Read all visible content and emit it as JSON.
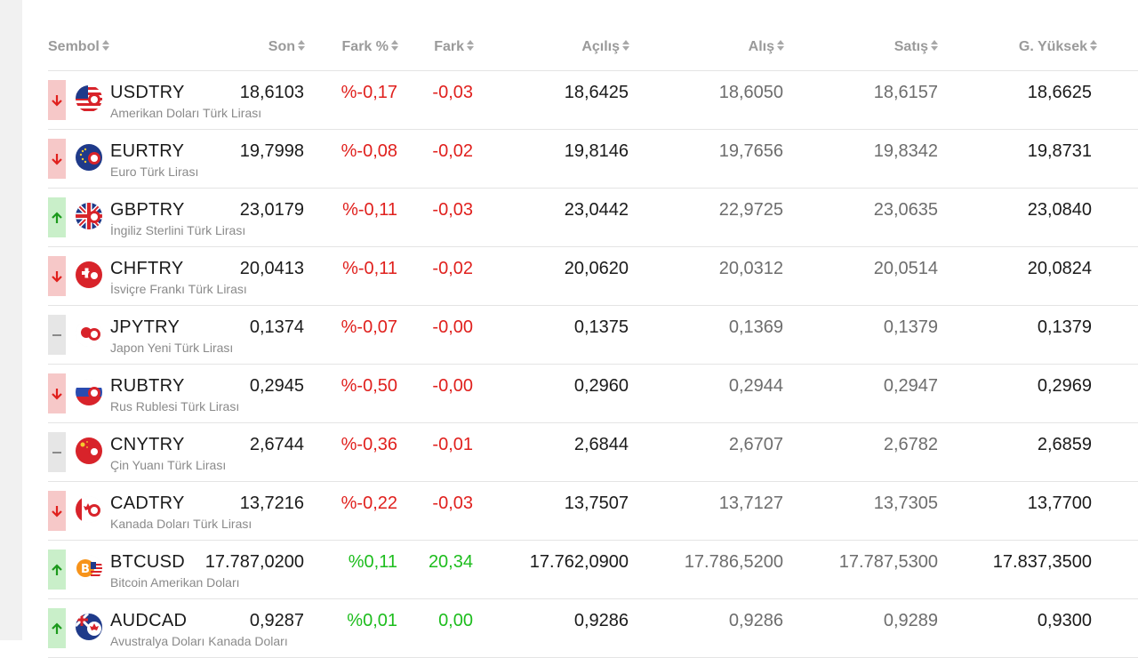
{
  "columns": {
    "symbol": "Sembol",
    "last": "Son",
    "change_pct": "Fark %",
    "change": "Fark",
    "open": "Açılış",
    "bid": "Alış",
    "ask": "Satış",
    "high": "G. Yüksek"
  },
  "colors": {
    "negative": "#e0201d",
    "positive": "#1dbd1d"
  },
  "rows": [
    {
      "symbol": "USDTRY",
      "desc": "Amerikan Doları Türk Lirası",
      "direction": "down",
      "flag": "us-flag-icon",
      "last": "18,6103",
      "pct": "%-0,17",
      "chg": "-0,03",
      "trend": "neg",
      "open": "18,6425",
      "bid": "18,6050",
      "ask": "18,6157",
      "high": "18,6625"
    },
    {
      "symbol": "EURTRY",
      "desc": "Euro Türk Lirası",
      "direction": "down",
      "flag": "eu-flag-icon",
      "last": "19,7998",
      "pct": "%-0,08",
      "chg": "-0,02",
      "trend": "neg",
      "open": "19,8146",
      "bid": "19,7656",
      "ask": "19,8342",
      "high": "19,8731"
    },
    {
      "symbol": "GBPTRY",
      "desc": "İngiliz Sterlini Türk Lirası",
      "direction": "up",
      "flag": "uk-flag-icon",
      "last": "23,0179",
      "pct": "%-0,11",
      "chg": "-0,03",
      "trend": "neg",
      "open": "23,0442",
      "bid": "22,9725",
      "ask": "23,0635",
      "high": "23,0840"
    },
    {
      "symbol": "CHFTRY",
      "desc": "İsviçre Frankı Türk Lirası",
      "direction": "down",
      "flag": "swiss-flag-icon",
      "last": "20,0413",
      "pct": "%-0,11",
      "chg": "-0,02",
      "trend": "neg",
      "open": "20,0620",
      "bid": "20,0312",
      "ask": "20,0514",
      "high": "20,0824"
    },
    {
      "symbol": "JPYTRY",
      "desc": "Japon Yeni Türk Lirası",
      "direction": "flat",
      "flag": "japan-flag-icon",
      "last": "0,1374",
      "pct": "%-0,07",
      "chg": "-0,00",
      "trend": "neg",
      "open": "0,1375",
      "bid": "0,1369",
      "ask": "0,1379",
      "high": "0,1379"
    },
    {
      "symbol": "RUBTRY",
      "desc": "Rus Rublesi Türk Lirası",
      "direction": "down",
      "flag": "russia-flag-icon",
      "last": "0,2945",
      "pct": "%-0,50",
      "chg": "-0,00",
      "trend": "neg",
      "open": "0,2960",
      "bid": "0,2944",
      "ask": "0,2947",
      "high": "0,2969"
    },
    {
      "symbol": "CNYTRY",
      "desc": "Çin Yuanı Türk Lirası",
      "direction": "flat",
      "flag": "china-flag-icon",
      "last": "2,6744",
      "pct": "%-0,36",
      "chg": "-0,01",
      "trend": "neg",
      "open": "2,6844",
      "bid": "2,6707",
      "ask": "2,6782",
      "high": "2,6859"
    },
    {
      "symbol": "CADTRY",
      "desc": "Kanada Doları Türk Lirası",
      "direction": "down",
      "flag": "canada-flag-icon",
      "last": "13,7216",
      "pct": "%-0,22",
      "chg": "-0,03",
      "trend": "neg",
      "open": "13,7507",
      "bid": "13,7127",
      "ask": "13,7305",
      "high": "13,7700"
    },
    {
      "symbol": "BTCUSD",
      "desc": "Bitcoin Amerikan Doları",
      "direction": "up",
      "flag": "bitcoin-us-flag-icon",
      "last": "17.787,0200",
      "pct": "%0,11",
      "chg": "20,34",
      "trend": "pos",
      "open": "17.762,0900",
      "bid": "17.786,5200",
      "ask": "17.787,5300",
      "high": "17.837,3500"
    },
    {
      "symbol": "AUDCAD",
      "desc": "Avustralya Doları Kanada Doları",
      "direction": "up",
      "flag": "australia-canada-flag-icon",
      "last": "0,9287",
      "pct": "%0,01",
      "chg": "0,00",
      "trend": "pos",
      "open": "0,9286",
      "bid": "0,9286",
      "ask": "0,9289",
      "high": "0,9300"
    }
  ]
}
